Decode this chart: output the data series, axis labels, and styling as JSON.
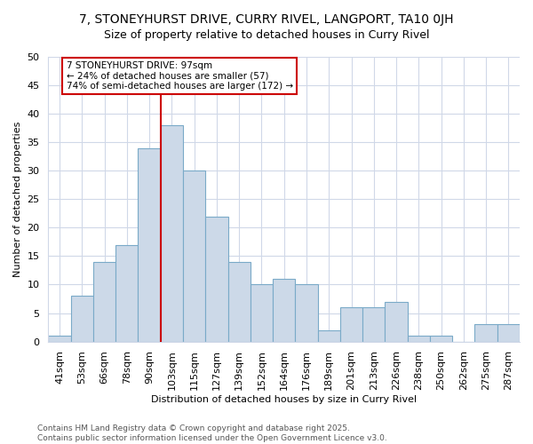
{
  "title": "7, STONEYHURST DRIVE, CURRY RIVEL, LANGPORT, TA10 0JH",
  "subtitle": "Size of property relative to detached houses in Curry Rivel",
  "xlabel": "Distribution of detached houses by size in Curry Rivel",
  "ylabel": "Number of detached properties",
  "bar_labels": [
    "41sqm",
    "53sqm",
    "66sqm",
    "78sqm",
    "90sqm",
    "103sqm",
    "115sqm",
    "127sqm",
    "139sqm",
    "152sqm",
    "164sqm",
    "176sqm",
    "189sqm",
    "201sqm",
    "213sqm",
    "226sqm",
    "238sqm",
    "250sqm",
    "262sqm",
    "275sqm",
    "287sqm"
  ],
  "bar_values": [
    1,
    8,
    14,
    17,
    34,
    38,
    30,
    22,
    14,
    10,
    11,
    10,
    2,
    6,
    6,
    7,
    1,
    1,
    0,
    3,
    3
  ],
  "bar_color": "#ccd9e8",
  "bar_edge_color": "#7aaac8",
  "vline_x_index": 4.5,
  "vline_color": "#cc0000",
  "annotation_line1": "7 STONEYHURST DRIVE: 97sqm",
  "annotation_line2": "← 24% of detached houses are smaller (57)",
  "annotation_line3": "74% of semi-detached houses are larger (172) →",
  "annotation_box_color": "white",
  "annotation_box_edge_color": "#cc0000",
  "footer_text": "Contains HM Land Registry data © Crown copyright and database right 2025.\nContains public sector information licensed under the Open Government Licence v3.0.",
  "ylim": [
    0,
    50
  ],
  "yticks": [
    0,
    5,
    10,
    15,
    20,
    25,
    30,
    35,
    40,
    45,
    50
  ],
  "background_color": "#ffffff",
  "grid_color": "#d0d8e8",
  "title_fontsize": 10,
  "subtitle_fontsize": 9,
  "axis_fontsize": 8,
  "tick_fontsize": 8,
  "annotation_fontsize": 7.5,
  "footer_fontsize": 6.5
}
